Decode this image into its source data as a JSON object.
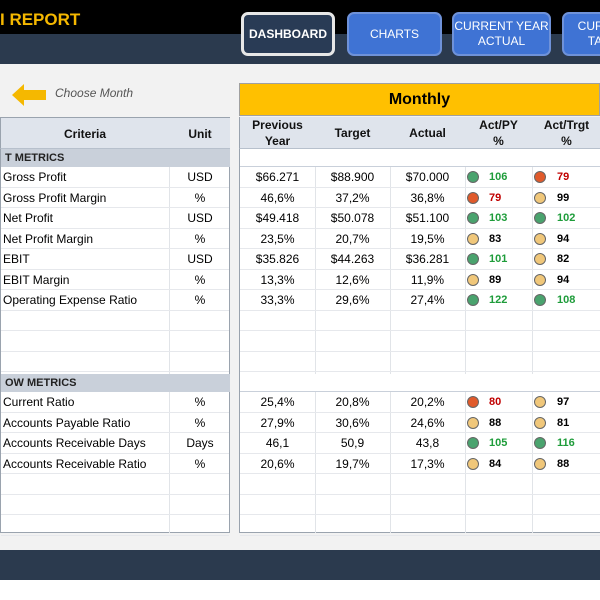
{
  "header": {
    "title": "I REPORT"
  },
  "nav": {
    "dashboard": "DASHBOARD",
    "charts": "CHARTS",
    "current_year_actual": "CURRENT YEAR ACTUAL",
    "partial": "CURR TA"
  },
  "controls": {
    "choose_month": "Choose Month"
  },
  "table": {
    "monthly_label": "Monthly",
    "columns": {
      "criteria": "Criteria",
      "unit": "Unit",
      "previous_year": "Previous Year",
      "target": "Target",
      "actual": "Actual",
      "act_py": "Act/PY %",
      "act_trgt": "Act/Trgt %"
    },
    "sections": [
      {
        "title": "T METRICS",
        "rows": [
          {
            "criteria": "Gross Profit",
            "unit": "USD",
            "previous": "$66.271",
            "target": "$88.900",
            "actual": "$70.000",
            "act_py": "106",
            "act_py_status": "green",
            "act_trgt": "79",
            "act_trgt_status": "red"
          },
          {
            "criteria": "Gross Profit Margin",
            "unit": "%",
            "previous": "46,6%",
            "target": "37,2%",
            "actual": "36,8%",
            "act_py": "79",
            "act_py_status": "red",
            "act_trgt": "99",
            "act_trgt_status": "yellow"
          },
          {
            "criteria": "Net Profit",
            "unit": "USD",
            "previous": "$49.418",
            "target": "$50.078",
            "actual": "$51.100",
            "act_py": "103",
            "act_py_status": "green",
            "act_trgt": "102",
            "act_trgt_status": "green"
          },
          {
            "criteria": "Net Profit Margin",
            "unit": "%",
            "previous": "23,5%",
            "target": "20,7%",
            "actual": "19,5%",
            "act_py": "83",
            "act_py_status": "yellow",
            "act_trgt": "94",
            "act_trgt_status": "yellow"
          },
          {
            "criteria": "EBIT",
            "unit": "USD",
            "previous": "$35.826",
            "target": "$44.263",
            "actual": "$36.281",
            "act_py": "101",
            "act_py_status": "green",
            "act_trgt": "82",
            "act_trgt_status": "yellow"
          },
          {
            "criteria": "EBIT Margin",
            "unit": "%",
            "previous": "13,3%",
            "target": "12,6%",
            "actual": "11,9%",
            "act_py": "89",
            "act_py_status": "yellow",
            "act_trgt": "94",
            "act_trgt_status": "yellow"
          },
          {
            "criteria": "Operating Expense Ratio",
            "unit": "%",
            "previous": "33,3%",
            "target": "29,6%",
            "actual": "27,4%",
            "act_py": "122",
            "act_py_status": "green",
            "act_trgt": "108",
            "act_trgt_status": "green"
          }
        ]
      },
      {
        "title": "OW METRICS",
        "rows": [
          {
            "criteria": "Current Ratio",
            "unit": "%",
            "previous": "25,4%",
            "target": "20,8%",
            "actual": "20,2%",
            "act_py": "80",
            "act_py_status": "red",
            "act_trgt": "97",
            "act_trgt_status": "yellow"
          },
          {
            "criteria": "Accounts Payable Ratio",
            "unit": "%",
            "previous": "27,9%",
            "target": "30,6%",
            "actual": "24,6%",
            "act_py": "88",
            "act_py_status": "yellow",
            "act_trgt": "81",
            "act_trgt_status": "yellow"
          },
          {
            "criteria": "Accounts Receivable Days",
            "unit": "Days",
            "previous": "46,1",
            "target": "50,9",
            "actual": "43,8",
            "act_py": "105",
            "act_py_status": "green",
            "act_trgt": "116",
            "act_trgt_status": "green"
          },
          {
            "criteria": "Accounts Receivable Ratio",
            "unit": "%",
            "previous": "20,6%",
            "target": "19,7%",
            "actual": "17,3%",
            "act_py": "84",
            "act_py_status": "yellow",
            "act_trgt": "88",
            "act_trgt_status": "yellow"
          }
        ]
      }
    ]
  },
  "colors": {
    "status_green": "#4aa36e",
    "status_red": "#e05a2b",
    "status_yellow": "#f0c77a",
    "text_green": "#1e9c3a",
    "text_red": "#c00000",
    "text_black": "#000000",
    "accent": "#ffc000"
  },
  "icons": {
    "arrow": "arrow-left-icon"
  }
}
